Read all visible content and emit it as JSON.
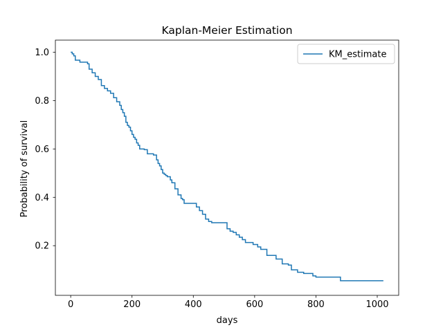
{
  "chart_data": {
    "type": "line",
    "step": "post",
    "title": "Kaplan-Meier Estimation",
    "xlabel": "days",
    "ylabel": "Probability of survival",
    "xlim": [
      -50,
      1070
    ],
    "ylim": [
      -0.0053,
      1.05
    ],
    "xticks": [
      0,
      200,
      400,
      600,
      800,
      1000
    ],
    "yticks": [
      0.2,
      0.4,
      0.6,
      0.8,
      1.0
    ],
    "xtick_labels": [
      "0",
      "200",
      "400",
      "600",
      "800",
      "1000"
    ],
    "ytick_labels": [
      "0.2",
      "0.4",
      "0.6",
      "0.8",
      "1.0"
    ],
    "grid": false,
    "legend": "upper right",
    "series": [
      {
        "name": "KM_estimate",
        "color": "#1f77b4",
        "x": [
          0,
          5,
          10,
          15,
          30,
          55,
          60,
          70,
          80,
          90,
          100,
          110,
          120,
          130,
          140,
          150,
          160,
          165,
          170,
          175,
          180,
          185,
          190,
          195,
          200,
          205,
          210,
          215,
          220,
          225,
          235,
          240,
          250,
          270,
          280,
          285,
          290,
          295,
          300,
          305,
          310,
          315,
          325,
          330,
          340,
          350,
          360,
          365,
          370,
          390,
          410,
          420,
          430,
          440,
          450,
          460,
          480,
          510,
          520,
          530,
          540,
          550,
          560,
          570,
          580,
          595,
          610,
          620,
          640,
          650,
          670,
          690,
          710,
          720,
          740,
          760,
          780,
          790,
          800,
          820,
          880,
          1020
        ],
        "y": [
          1.0,
          0.993,
          0.985,
          0.967,
          0.959,
          0.952,
          0.93,
          0.915,
          0.9,
          0.887,
          0.862,
          0.85,
          0.84,
          0.83,
          0.812,
          0.795,
          0.78,
          0.763,
          0.75,
          0.735,
          0.71,
          0.697,
          0.69,
          0.675,
          0.66,
          0.648,
          0.64,
          0.625,
          0.615,
          0.6,
          0.6,
          0.597,
          0.58,
          0.575,
          0.555,
          0.54,
          0.53,
          0.515,
          0.5,
          0.495,
          0.49,
          0.485,
          0.472,
          0.46,
          0.435,
          0.41,
          0.395,
          0.39,
          0.375,
          0.375,
          0.36,
          0.345,
          0.33,
          0.31,
          0.3,
          0.295,
          0.295,
          0.27,
          0.26,
          0.255,
          0.245,
          0.235,
          0.225,
          0.213,
          0.213,
          0.205,
          0.195,
          0.185,
          0.16,
          0.16,
          0.145,
          0.125,
          0.12,
          0.1,
          0.09,
          0.085,
          0.085,
          0.075,
          0.07,
          0.07,
          0.055,
          0.055
        ]
      }
    ]
  }
}
